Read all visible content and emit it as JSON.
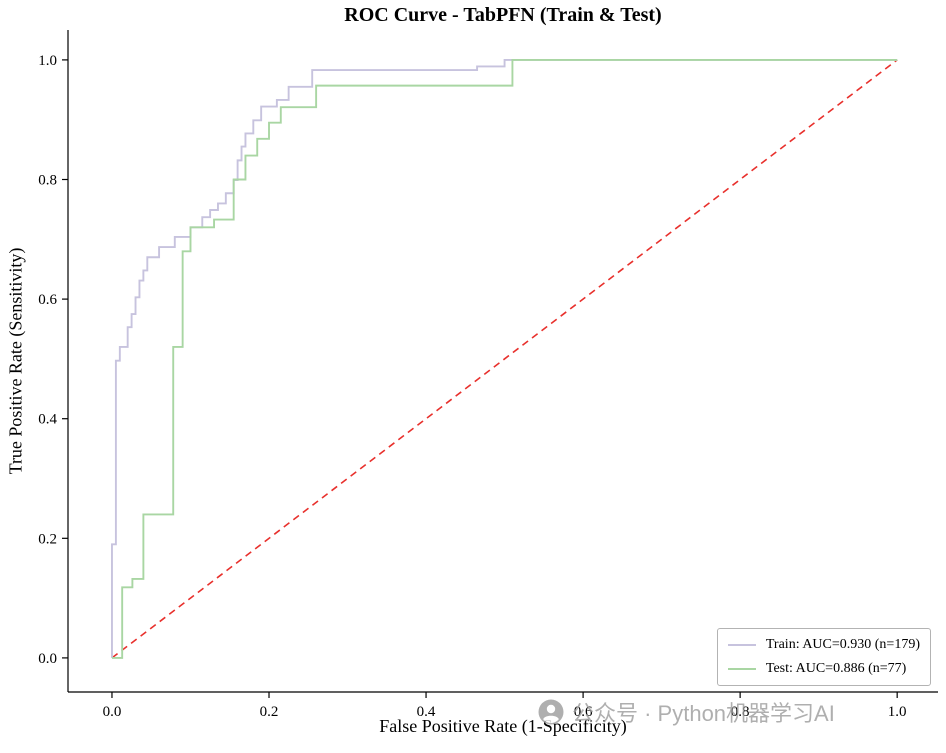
{
  "chart_data": {
    "type": "line",
    "title": "ROC Curve - TabPFN (Train & Test)",
    "xlabel": "False Positive Rate (1-Specificity)",
    "ylabel": "True Positive Rate (Sensitivity)",
    "xlim": [
      -0.056,
      1.052
    ],
    "ylim": [
      -0.057,
      1.05
    ],
    "xticks": [
      0.0,
      0.2,
      0.4,
      0.6,
      0.8,
      1.0
    ],
    "yticks": [
      0.0,
      0.2,
      0.4,
      0.6,
      0.8,
      1.0
    ],
    "grid": false,
    "legend_position": "lower right",
    "series": [
      {
        "name": "Train",
        "label": "Train: AUC=0.930 (n=179)",
        "auc": 0.93,
        "n": 179,
        "color": "#c7c3de",
        "points": [
          [
            0.0,
            0.0
          ],
          [
            0.0,
            0.19
          ],
          [
            0.005,
            0.19
          ],
          [
            0.005,
            0.497
          ],
          [
            0.01,
            0.497
          ],
          [
            0.01,
            0.52
          ],
          [
            0.02,
            0.52
          ],
          [
            0.02,
            0.553
          ],
          [
            0.025,
            0.553
          ],
          [
            0.025,
            0.575
          ],
          [
            0.03,
            0.575
          ],
          [
            0.03,
            0.603
          ],
          [
            0.035,
            0.603
          ],
          [
            0.035,
            0.631
          ],
          [
            0.04,
            0.631
          ],
          [
            0.04,
            0.648
          ],
          [
            0.045,
            0.648
          ],
          [
            0.045,
            0.67
          ],
          [
            0.06,
            0.67
          ],
          [
            0.06,
            0.687
          ],
          [
            0.08,
            0.687
          ],
          [
            0.08,
            0.704
          ],
          [
            0.1,
            0.704
          ],
          [
            0.1,
            0.72
          ],
          [
            0.115,
            0.72
          ],
          [
            0.115,
            0.737
          ],
          [
            0.125,
            0.737
          ],
          [
            0.125,
            0.749
          ],
          [
            0.135,
            0.749
          ],
          [
            0.135,
            0.76
          ],
          [
            0.145,
            0.76
          ],
          [
            0.145,
            0.777
          ],
          [
            0.155,
            0.777
          ],
          [
            0.155,
            0.799
          ],
          [
            0.16,
            0.799
          ],
          [
            0.16,
            0.832
          ],
          [
            0.165,
            0.832
          ],
          [
            0.165,
            0.855
          ],
          [
            0.17,
            0.855
          ],
          [
            0.17,
            0.877
          ],
          [
            0.18,
            0.877
          ],
          [
            0.18,
            0.899
          ],
          [
            0.19,
            0.899
          ],
          [
            0.19,
            0.922
          ],
          [
            0.21,
            0.922
          ],
          [
            0.21,
            0.933
          ],
          [
            0.225,
            0.933
          ],
          [
            0.225,
            0.955
          ],
          [
            0.255,
            0.955
          ],
          [
            0.255,
            0.983
          ],
          [
            0.465,
            0.983
          ],
          [
            0.465,
            0.989
          ],
          [
            0.5,
            0.989
          ],
          [
            0.5,
            1.0
          ],
          [
            1.0,
            1.0
          ]
        ]
      },
      {
        "name": "Test",
        "label": "Test: AUC=0.886 (n=77)",
        "auc": 0.886,
        "n": 77,
        "color": "#a9d6a3",
        "points": [
          [
            0.0,
            0.0
          ],
          [
            0.013,
            0.0
          ],
          [
            0.013,
            0.118
          ],
          [
            0.026,
            0.118
          ],
          [
            0.026,
            0.132
          ],
          [
            0.04,
            0.132
          ],
          [
            0.04,
            0.24
          ],
          [
            0.078,
            0.24
          ],
          [
            0.078,
            0.52
          ],
          [
            0.09,
            0.52
          ],
          [
            0.09,
            0.68
          ],
          [
            0.1,
            0.68
          ],
          [
            0.1,
            0.72
          ],
          [
            0.13,
            0.72
          ],
          [
            0.13,
            0.733
          ],
          [
            0.155,
            0.733
          ],
          [
            0.155,
            0.8
          ],
          [
            0.17,
            0.8
          ],
          [
            0.17,
            0.84
          ],
          [
            0.185,
            0.84
          ],
          [
            0.185,
            0.868
          ],
          [
            0.2,
            0.868
          ],
          [
            0.2,
            0.895
          ],
          [
            0.215,
            0.895
          ],
          [
            0.215,
            0.921
          ],
          [
            0.26,
            0.921
          ],
          [
            0.26,
            0.957
          ],
          [
            0.51,
            0.957
          ],
          [
            0.51,
            1.0
          ],
          [
            1.0,
            1.0
          ]
        ]
      }
    ],
    "reference_line": {
      "name": "chance-diagonal",
      "color": "#e8302c",
      "dashed": true,
      "points": [
        [
          0.0,
          0.0
        ],
        [
          1.0,
          1.0
        ]
      ]
    }
  },
  "watermark": {
    "text": "公众号 · Python机器学习AI",
    "icon": "wechat-official-account-icon"
  }
}
